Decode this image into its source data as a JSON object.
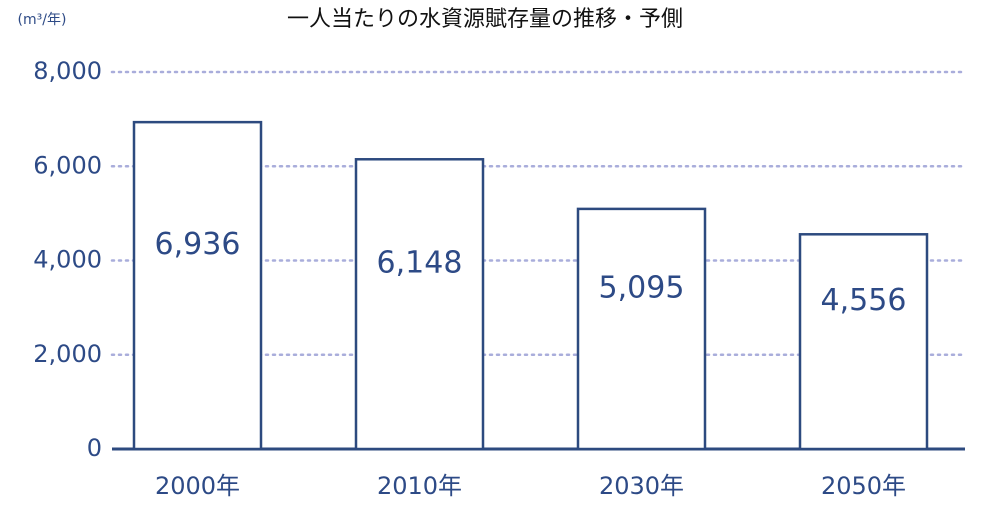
{
  "chart_data": {
    "type": "bar",
    "title": "一人当たりの水資源賦存量の推移・予側",
    "y_unit": "(m³/年)",
    "categories": [
      "2000年",
      "2010年",
      "2030年",
      "2050年"
    ],
    "values": [
      6936,
      6148,
      5095,
      4556
    ],
    "value_labels": [
      "6,936",
      "6,148",
      "5,095",
      "4,556"
    ],
    "color": "#2d4a7f",
    "ylim": [
      0,
      8000
    ],
    "yticks": [
      0,
      {
        "value": 2000,
        "label": "2,000"
      },
      {
        "value": 4000,
        "label": "4,000"
      },
      {
        "value": 6000,
        "label": "6,000"
      },
      {
        "value": 8000,
        "label": "8,000"
      }
    ],
    "grid": true
  }
}
